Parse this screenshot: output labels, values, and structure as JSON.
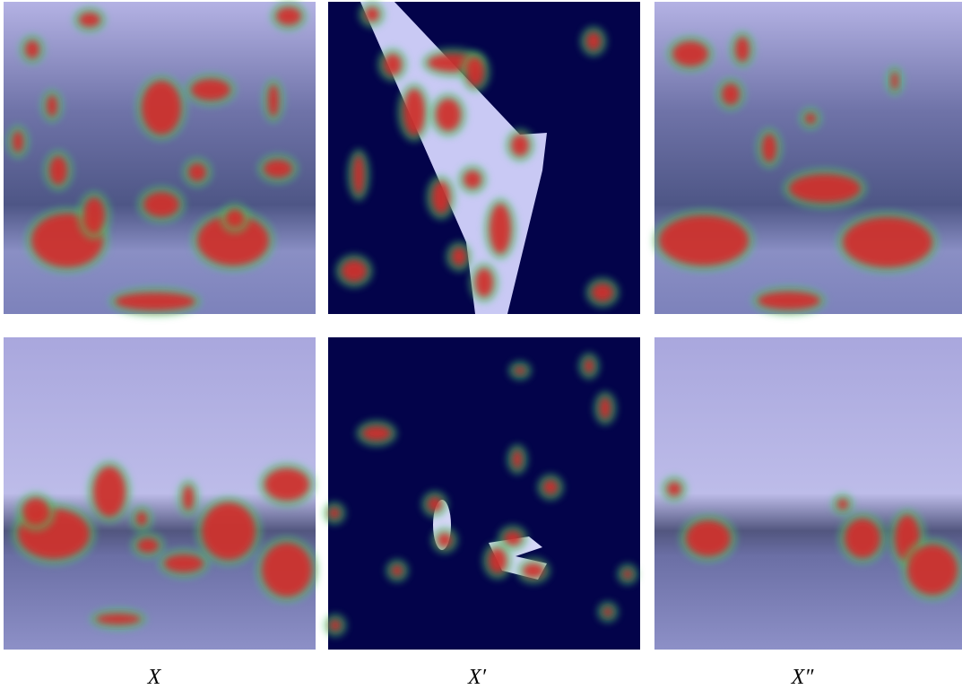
{
  "captions": [
    "X",
    "X′",
    "X″"
  ]
}
